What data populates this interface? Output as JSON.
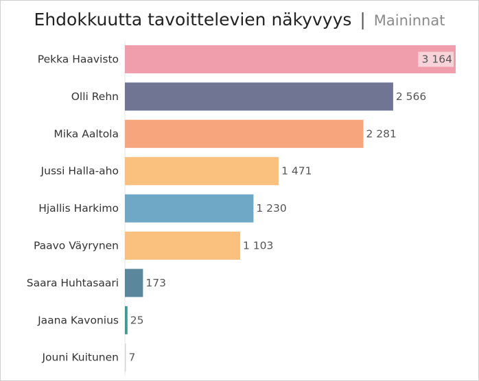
{
  "title": "Ehdokkuutta tavoittelevien näkyvyys",
  "subtitle": "Maininnat",
  "separator": "|",
  "chart_data": {
    "type": "bar",
    "orientation": "horizontal",
    "categories": [
      "Pekka Haavisto",
      "Olli Rehn",
      "Mika Aaltola",
      "Jussi Halla-aho",
      "Hjallis Harkimo",
      "Paavo Väyrynen",
      "Saara Huhtasaari",
      "Jaana Kavonius",
      "Jouni Kuitunen"
    ],
    "values": [
      3164,
      2566,
      2281,
      1471,
      1230,
      1103,
      173,
      25,
      7
    ],
    "value_labels": [
      "3 164",
      "2 566",
      "2 281",
      "1 471",
      "1 230",
      "1 103",
      "173",
      "25",
      "7"
    ],
    "bar_colors": [
      "#f09eab",
      "#717594",
      "#f7a57d",
      "#fac07e",
      "#6fa7c7",
      "#fac07e",
      "#5a879c",
      "#3f9b91",
      "#d7d7d7"
    ],
    "xlim": [
      0,
      3164
    ],
    "grid": false,
    "axes_visible": false
  }
}
